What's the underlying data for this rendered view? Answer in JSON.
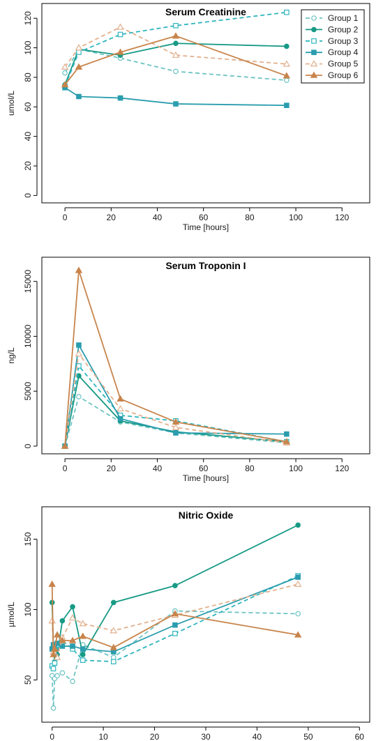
{
  "colors": {
    "Group 1": "#6cc3c3",
    "Group 2": "#179a85",
    "Group 3": "#2db5bd",
    "Group 4": "#2a9dae",
    "Group 5": "#e2b08e",
    "Group 6": "#c8844b"
  },
  "styles": {
    "Group 1": {
      "dash": true,
      "marker": "circle-open"
    },
    "Group 2": {
      "dash": false,
      "marker": "circle-filled"
    },
    "Group 3": {
      "dash": true,
      "marker": "square-open"
    },
    "Group 4": {
      "dash": false,
      "marker": "square-filled"
    },
    "Group 5": {
      "dash": true,
      "marker": "triangle-open"
    },
    "Group 6": {
      "dash": false,
      "marker": "triangle-filled"
    }
  },
  "chart_data": [
    {
      "type": "line",
      "title": "Serum Creatinine",
      "xlabel": "Time [hours]",
      "ylabel": "umol/L",
      "xlim": [
        -10,
        132
      ],
      "ylim": [
        -5,
        130
      ],
      "xticks": [
        0,
        20,
        40,
        60,
        80,
        100,
        120
      ],
      "yticks": [
        0,
        20,
        40,
        60,
        80,
        100,
        120
      ],
      "legend": "top-right",
      "series": [
        {
          "name": "Group 1",
          "x": [
            0,
            6,
            24,
            48,
            96
          ],
          "y": [
            83,
            99,
            93,
            84,
            78
          ]
        },
        {
          "name": "Group 2",
          "x": [
            0,
            6,
            24,
            48,
            96
          ],
          "y": [
            75,
            99,
            95,
            103,
            101
          ]
        },
        {
          "name": "Group 3",
          "x": [
            0,
            6,
            24,
            48,
            96
          ],
          "y": [
            74,
            97,
            109,
            115,
            124
          ]
        },
        {
          "name": "Group 4",
          "x": [
            0,
            6,
            24,
            48,
            96
          ],
          "y": [
            73,
            67,
            66,
            62,
            61
          ]
        },
        {
          "name": "Group 5",
          "x": [
            0,
            6,
            24,
            48,
            96
          ],
          "y": [
            87,
            100,
            114,
            95,
            89
          ]
        },
        {
          "name": "Group 6",
          "x": [
            0,
            6,
            24,
            48,
            96
          ],
          "y": [
            75,
            87,
            97,
            108,
            81
          ]
        }
      ]
    },
    {
      "type": "line",
      "title": "Serum Troponin I",
      "xlabel": "Time [hours]",
      "ylabel": "ng/L",
      "xlim": [
        -10,
        132
      ],
      "ylim": [
        -700,
        17200
      ],
      "xticks": [
        0,
        20,
        40,
        60,
        80,
        100,
        120
      ],
      "yticks": [
        0,
        5000,
        10000,
        15000
      ],
      "series": [
        {
          "name": "Group 1",
          "x": [
            0,
            6,
            24,
            48,
            96
          ],
          "y": [
            0,
            4500,
            2200,
            1200,
            300
          ]
        },
        {
          "name": "Group 2",
          "x": [
            0,
            6,
            24,
            48,
            96
          ],
          "y": [
            0,
            6400,
            2300,
            1300,
            400
          ]
        },
        {
          "name": "Group 3",
          "x": [
            0,
            6,
            24,
            48,
            96
          ],
          "y": [
            0,
            7300,
            2800,
            2300,
            400
          ]
        },
        {
          "name": "Group 4",
          "x": [
            0,
            6,
            24,
            48,
            96
          ],
          "y": [
            0,
            9200,
            2500,
            1200,
            1100
          ]
        },
        {
          "name": "Group 5",
          "x": [
            0,
            6,
            24,
            48,
            96
          ],
          "y": [
            0,
            8400,
            3400,
            1700,
            300
          ]
        },
        {
          "name": "Group 6",
          "x": [
            0,
            6,
            24,
            48,
            96
          ],
          "y": [
            0,
            16000,
            4300,
            2200,
            400
          ]
        }
      ]
    },
    {
      "type": "line",
      "title": "Nitric Oxide",
      "xlabel": "Time [hours]",
      "ylabel": "µmol/L",
      "xlim": [
        -2,
        62
      ],
      "ylim": [
        20,
        173
      ],
      "xticks": [
        0,
        10,
        20,
        30,
        40,
        50,
        60
      ],
      "yticks": [
        50,
        100,
        150
      ],
      "series": [
        {
          "name": "Group 1",
          "x": [
            0,
            0.25,
            0.5,
            1,
            2,
            4,
            6,
            12,
            24,
            48
          ],
          "y": [
            53,
            30,
            51,
            53,
            55,
            49,
            75,
            66,
            99,
            97
          ]
        },
        {
          "name": "Group 2",
          "x": [
            0,
            0.25,
            0.5,
            1,
            2,
            4,
            6,
            12,
            24,
            48
          ],
          "y": [
            105,
            73,
            63,
            68,
            92,
            102,
            68,
            105,
            117,
            160
          ]
        },
        {
          "name": "Group 3",
          "x": [
            0,
            0.25,
            0.5,
            1,
            2,
            4,
            6,
            12,
            24,
            48
          ],
          "y": [
            60,
            58,
            62,
            75,
            78,
            72,
            64,
            63,
            83,
            124
          ]
        },
        {
          "name": "Group 4",
          "x": [
            0,
            0.25,
            0.5,
            1,
            2,
            4,
            6,
            12,
            24,
            48
          ],
          "y": [
            72,
            75,
            70,
            76,
            74,
            74,
            72,
            70,
            89,
            123
          ]
        },
        {
          "name": "Group 5",
          "x": [
            0,
            0.25,
            0.5,
            1,
            2,
            4,
            6,
            12,
            24,
            48
          ],
          "y": [
            92,
            70,
            72,
            66,
            80,
            94,
            90,
            85,
            96,
            118
          ]
        },
        {
          "name": "Group 6",
          "x": [
            0,
            0.25,
            0.5,
            1,
            2,
            4,
            6,
            12,
            24,
            48
          ],
          "y": [
            118,
            68,
            72,
            82,
            78,
            78,
            81,
            73,
            97,
            82
          ]
        }
      ]
    }
  ]
}
